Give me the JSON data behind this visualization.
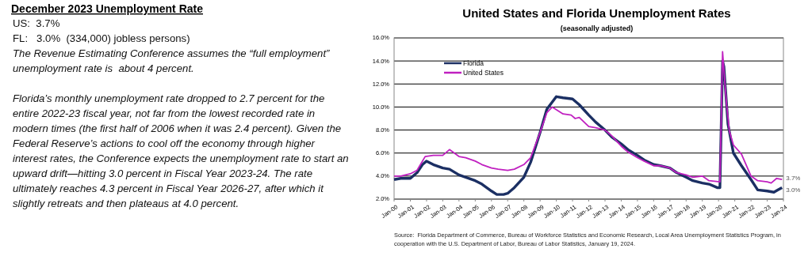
{
  "chart_data": [
    {
      "type": "other",
      "title": "December 2023 Unemployment Rate",
      "annotations": [
        "US:  3.7%",
        "FL:   3.0%  (334,000) jobless persons)",
        "The Revenue Estimating Conference assumes the “full employment” unemployment rate is  about 4 percent.",
        "Florida’s monthly unemployment rate dropped to 2.7 percent for the entire 2022-23 fiscal year, not far from the lowest recorded rate in modern times (the first half of 2006 when it was 2.4 percent). Given the Federal Reserve’s actions to cool off the economy through higher interest rates, the Conference expects the unemployment rate to start an upward drift—hitting 3.0 percent in Fiscal Year 2023-24. The rate ultimately reaches 4.3 percent in Fiscal Year 2026-27, after which it slightly retreats and then plateaus at 4.0 percent."
      ]
    },
    {
      "type": "line",
      "title": "United States and Florida Unemployment Rates",
      "subtitle": "(seasonally adjusted)",
      "grid": "y",
      "legend": "top left",
      "xlim": [
        "2000-01",
        "2024-01"
      ],
      "xticks": [
        {
          "value": "2000-01",
          "label": "Jan-00"
        },
        {
          "value": "2001-01",
          "label": "Jan-01"
        },
        {
          "value": "2002-01",
          "label": "Jan-02"
        },
        {
          "value": "2003-01",
          "label": "Jan-03"
        },
        {
          "value": "2004-01",
          "label": "Jan-04"
        },
        {
          "value": "2005-01",
          "label": "Jan-05"
        },
        {
          "value": "2006-01",
          "label": "Jan-06"
        },
        {
          "value": "2007-01",
          "label": "Jan-07"
        },
        {
          "value": "2008-01",
          "label": "Jan-08"
        },
        {
          "value": "2009-01",
          "label": "Jan-09"
        },
        {
          "value": "2010-01",
          "label": "Jan-10"
        },
        {
          "value": "2011-01",
          "label": "Jan-11"
        },
        {
          "value": "2012-01",
          "label": "Jan-12"
        },
        {
          "value": "2013-01",
          "label": "Jan-13"
        },
        {
          "value": "2014-01",
          "label": "Jan-14"
        },
        {
          "value": "2015-01",
          "label": "Jan-15"
        },
        {
          "value": "2016-01",
          "label": "Jan-16"
        },
        {
          "value": "2017-01",
          "label": "Jan-17"
        },
        {
          "value": "2018-01",
          "label": "Jan-18"
        },
        {
          "value": "2019-01",
          "label": "Jan-19"
        },
        {
          "value": "2020-01",
          "label": "Jan-20"
        },
        {
          "value": "2021-01",
          "label": "Jan-21"
        },
        {
          "value": "2022-01",
          "label": "Jan-22"
        },
        {
          "value": "2023-01",
          "label": "Jan-23"
        },
        {
          "value": "2024-01",
          "label": "Jan-24"
        }
      ],
      "ylim": [
        2,
        16
      ],
      "yticks": [
        {
          "value": 2,
          "label": "2.0%"
        },
        {
          "value": 4,
          "label": "4.0%"
        },
        {
          "value": 6,
          "label": "6.0%"
        },
        {
          "value": 8,
          "label": "8.0%"
        },
        {
          "value": 10,
          "label": "10.0%"
        },
        {
          "value": 12,
          "label": "12.0%"
        },
        {
          "value": 14,
          "label": "14.0%"
        },
        {
          "value": 16,
          "label": "16.0%"
        }
      ],
      "series": [
        {
          "name": "Florida",
          "color": "#1b2f63",
          "x": [
            "2000-01",
            "2000-06",
            "2001-01",
            "2001-06",
            "2001-10",
            "2002-01",
            "2002-06",
            "2003-01",
            "2003-06",
            "2004-01",
            "2004-06",
            "2005-01",
            "2005-06",
            "2006-01",
            "2006-05",
            "2006-10",
            "2007-01",
            "2007-06",
            "2008-01",
            "2008-06",
            "2009-01",
            "2009-06",
            "2010-01",
            "2010-06",
            "2011-01",
            "2011-06",
            "2012-01",
            "2012-06",
            "2013-01",
            "2013-06",
            "2014-01",
            "2014-06",
            "2015-01",
            "2015-06",
            "2016-01",
            "2016-06",
            "2017-01",
            "2017-06",
            "2018-01",
            "2018-06",
            "2019-01",
            "2019-06",
            "2019-12",
            "2020-02",
            "2020-04",
            "2020-05",
            "2020-06",
            "2020-08",
            "2020-12",
            "2021-06",
            "2022-01",
            "2022-06",
            "2023-01",
            "2023-06",
            "2023-09",
            "2023-12"
          ],
          "values": [
            3.7,
            3.8,
            3.8,
            4.3,
            5.0,
            5.3,
            5.0,
            4.7,
            4.6,
            4.1,
            3.9,
            3.6,
            3.3,
            2.7,
            2.4,
            2.4,
            2.5,
            3.0,
            3.9,
            5.2,
            7.8,
            9.8,
            10.9,
            10.8,
            10.7,
            10.2,
            9.3,
            8.7,
            8.0,
            7.4,
            6.8,
            6.3,
            5.8,
            5.4,
            5.0,
            4.9,
            4.7,
            4.3,
            3.9,
            3.6,
            3.4,
            3.3,
            3.0,
            3.0,
            14.0,
            13.5,
            11.8,
            8.5,
            6.0,
            4.9,
            3.7,
            2.8,
            2.7,
            2.6,
            2.8,
            3.0
          ]
        },
        {
          "name": "United States",
          "color": "#c020c0",
          "x": [
            "2000-01",
            "2000-06",
            "2001-01",
            "2001-06",
            "2001-12",
            "2002-06",
            "2003-01",
            "2003-06",
            "2004-01",
            "2004-06",
            "2005-01",
            "2005-06",
            "2006-01",
            "2006-06",
            "2007-01",
            "2007-06",
            "2008-01",
            "2008-06",
            "2009-01",
            "2009-06",
            "2009-10",
            "2010-06",
            "2010-12",
            "2011-03",
            "2011-06",
            "2012-01",
            "2012-06",
            "2013-01",
            "2013-06",
            "2014-01",
            "2014-06",
            "2015-01",
            "2015-06",
            "2016-01",
            "2016-06",
            "2017-01",
            "2017-06",
            "2018-01",
            "2018-06",
            "2019-01",
            "2019-06",
            "2020-02",
            "2020-04",
            "2020-05",
            "2020-07",
            "2020-09",
            "2020-12",
            "2021-06",
            "2022-01",
            "2022-06",
            "2023-01",
            "2023-04",
            "2023-08",
            "2023-12"
          ],
          "values": [
            4.0,
            4.0,
            4.2,
            4.5,
            5.7,
            5.8,
            5.8,
            6.3,
            5.7,
            5.6,
            5.3,
            5.0,
            4.7,
            4.6,
            4.5,
            4.6,
            5.0,
            5.6,
            7.8,
            9.5,
            10.0,
            9.4,
            9.3,
            9.0,
            9.1,
            8.3,
            8.2,
            8.0,
            7.5,
            6.6,
            6.1,
            5.6,
            5.3,
            4.9,
            4.9,
            4.7,
            4.3,
            4.1,
            3.9,
            4.0,
            3.6,
            3.5,
            14.8,
            13.2,
            10.2,
            7.9,
            6.7,
            5.9,
            4.0,
            3.6,
            3.5,
            3.4,
            3.8,
            3.7
          ]
        }
      ],
      "annotations": [
        {
          "text": "3.7%",
          "x": "2023-12",
          "y": 3.7
        },
        {
          "text": "3.0%",
          "x": "2023-12",
          "y": 3.0
        },
        "Source:  Florida Department of Commerce, Bureau of Workforce Statistics and Economic Research, Local Area Unemployment Statistics Program, in cooperation with the U.S. Department of Labor, Bureau of Labor Statistics, January 19, 2024."
      ]
    }
  ]
}
